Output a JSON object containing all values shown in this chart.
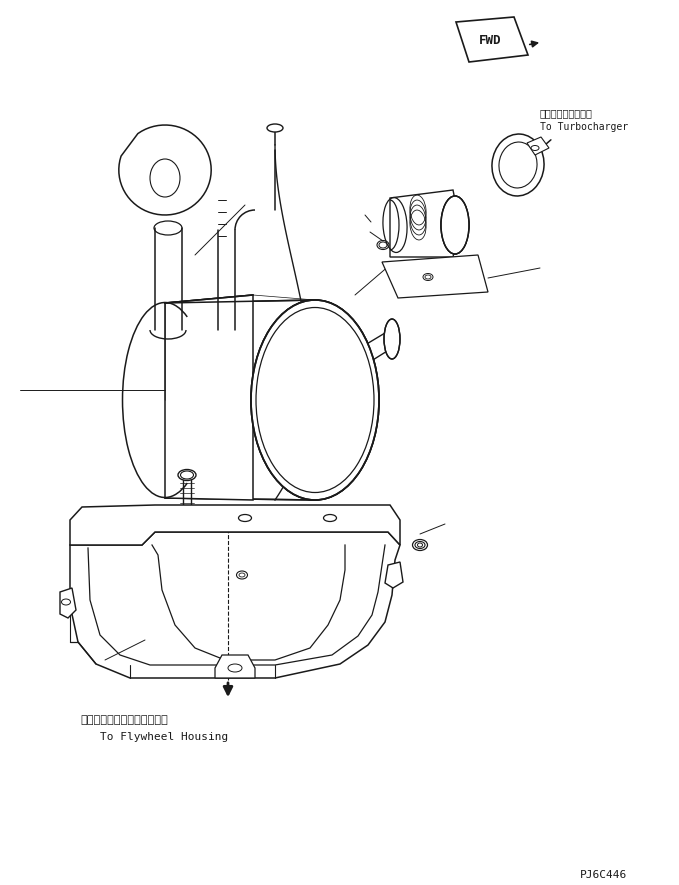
{
  "bg_color": "#ffffff",
  "line_color": "#1a1a1a",
  "fig_width": 6.79,
  "fig_height": 8.85,
  "dpi": 100,
  "fwd_label": "FWD",
  "turbo_label_jp": "ターボチャージャヘ",
  "turbo_label_en": "To Turbocharger",
  "flywheel_label_jp": "フライホイールハウジングヘ",
  "flywheel_label_en": "To Flywheel Housing",
  "part_code": "PJ6C446",
  "text_color": "#1a1a1a"
}
